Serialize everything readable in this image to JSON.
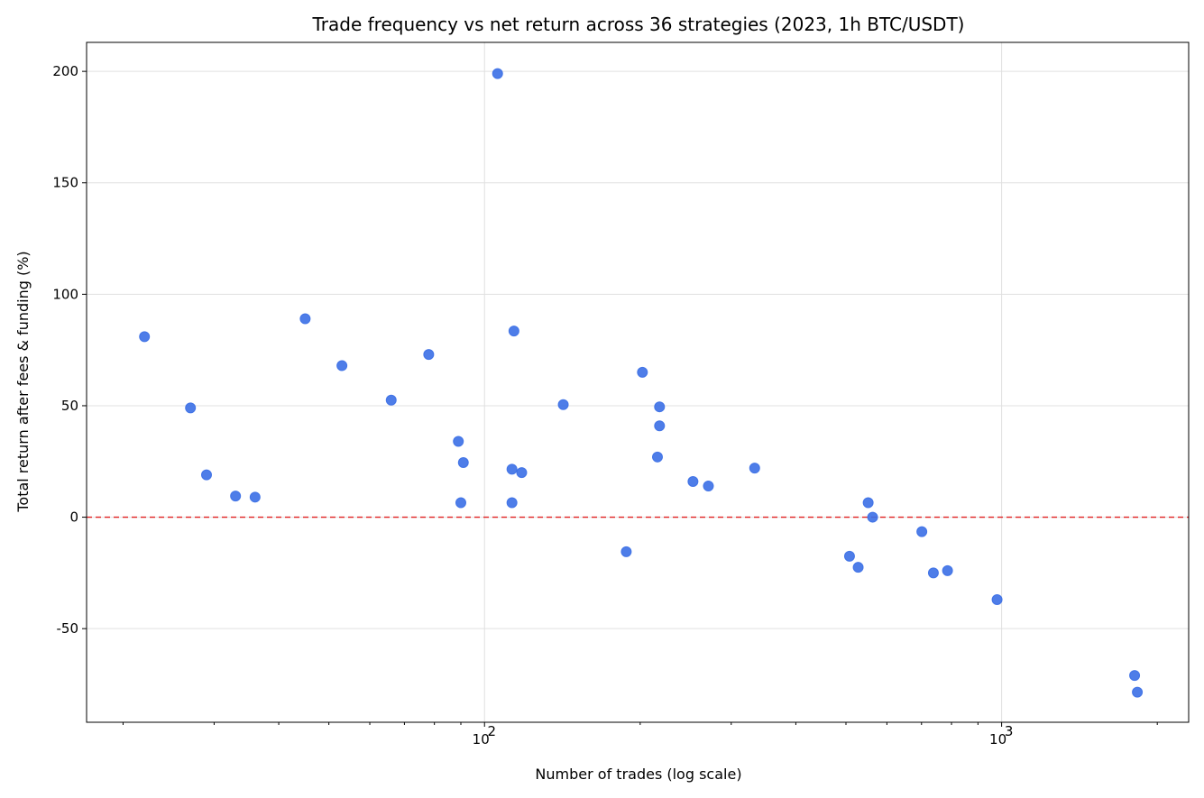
{
  "chart_data": {
    "type": "scatter",
    "title": "Trade frequency vs net return across 36 strategies (2023, 1h BTC/USDT)",
    "xlabel": "Number of trades (log scale)",
    "ylabel": "Total return after fees & funding (%)",
    "xscale": "log",
    "xlim": [
      17,
      2300
    ],
    "ylim": [
      -92,
      213
    ],
    "x_ticks": [
      {
        "value": 100,
        "label": "10",
        "exp": "2"
      },
      {
        "value": 1000,
        "label": "10",
        "exp": "3"
      }
    ],
    "y_ticks": [
      {
        "value": 200,
        "label": "200"
      },
      {
        "value": 150,
        "label": "150"
      },
      {
        "value": 100,
        "label": "100"
      },
      {
        "value": 50,
        "label": "50"
      },
      {
        "value": 0,
        "label": "0"
      },
      {
        "value": -50,
        "label": "-50"
      }
    ],
    "grid": true,
    "reference_line": {
      "y": 0,
      "color": "#e02020",
      "style": "dashed"
    },
    "marker_color": "#3b6fe6",
    "points": [
      {
        "x": 22,
        "y": 81
      },
      {
        "x": 27,
        "y": 49
      },
      {
        "x": 29,
        "y": 19
      },
      {
        "x": 33,
        "y": 9.5
      },
      {
        "x": 36,
        "y": 9
      },
      {
        "x": 45,
        "y": 89
      },
      {
        "x": 53,
        "y": 68
      },
      {
        "x": 66,
        "y": 52.5
      },
      {
        "x": 78,
        "y": 73
      },
      {
        "x": 89,
        "y": 34
      },
      {
        "x": 91,
        "y": 24.5
      },
      {
        "x": 90,
        "y": 6.5
      },
      {
        "x": 106,
        "y": 199
      },
      {
        "x": 114,
        "y": 83.5
      },
      {
        "x": 113,
        "y": 21.5
      },
      {
        "x": 118,
        "y": 20
      },
      {
        "x": 113,
        "y": 6.5
      },
      {
        "x": 142,
        "y": 50.5
      },
      {
        "x": 188,
        "y": -15.5
      },
      {
        "x": 202,
        "y": 65
      },
      {
        "x": 218,
        "y": 49.5
      },
      {
        "x": 218,
        "y": 41
      },
      {
        "x": 216,
        "y": 27
      },
      {
        "x": 253,
        "y": 16
      },
      {
        "x": 271,
        "y": 14
      },
      {
        "x": 333,
        "y": 22
      },
      {
        "x": 508,
        "y": -17.5
      },
      {
        "x": 528,
        "y": -22.5
      },
      {
        "x": 552,
        "y": 6.5
      },
      {
        "x": 563,
        "y": 0
      },
      {
        "x": 701,
        "y": -6.5
      },
      {
        "x": 738,
        "y": -25
      },
      {
        "x": 786,
        "y": -24
      },
      {
        "x": 980,
        "y": -37
      },
      {
        "x": 1808,
        "y": -71
      },
      {
        "x": 1830,
        "y": -78.5
      }
    ]
  }
}
